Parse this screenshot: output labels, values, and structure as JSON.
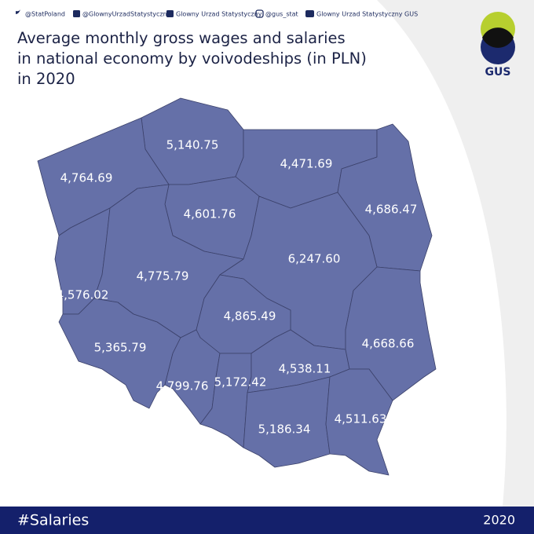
{
  "header": {
    "socials": [
      "@StatPoland",
      "@GlownyUrzadStatystyczny",
      "Glowny Urzad Statystyczny",
      "@gus_stat",
      "Glowny Urzad Statystyczny GUS"
    ],
    "title_lines": [
      "Average monthly gross wages and salaries",
      "in national economy by voivodeships (in PLN)",
      "in 2020"
    ],
    "logo": "GUS"
  },
  "map": {
    "regions": [
      {
        "value": 5140.75,
        "value_label": "5,140.75"
      },
      {
        "value": 4764.69,
        "value_label": "4,764.69"
      },
      {
        "value": 4471.69,
        "value_label": "4,471.69"
      },
      {
        "value": 4686.47,
        "value_label": "4,686.47"
      },
      {
        "value": 4601.76,
        "value_label": "4,601.76"
      },
      {
        "value": 4576.02,
        "value_label": "4,576.02"
      },
      {
        "value": 4775.79,
        "value_label": "4,775.79"
      },
      {
        "value": 6247.6,
        "value_label": "6,247.60"
      },
      {
        "value": 4865.49,
        "value_label": "4,865.49"
      },
      {
        "value": 5365.79,
        "value_label": "5,365.79"
      },
      {
        "value": 4799.76,
        "value_label": "4,799.76"
      },
      {
        "value": 5172.42,
        "value_label": "5,172.42"
      },
      {
        "value": 4538.11,
        "value_label": "4,538.11"
      },
      {
        "value": 4668.66,
        "value_label": "4,668.66"
      },
      {
        "value": 5186.34,
        "value_label": "5,186.34"
      },
      {
        "value": 4511.63,
        "value_label": "4,511.63"
      }
    ],
    "color": "#6570a8"
  },
  "footer": {
    "hashtag": "#Salaries",
    "year": "2020"
  }
}
